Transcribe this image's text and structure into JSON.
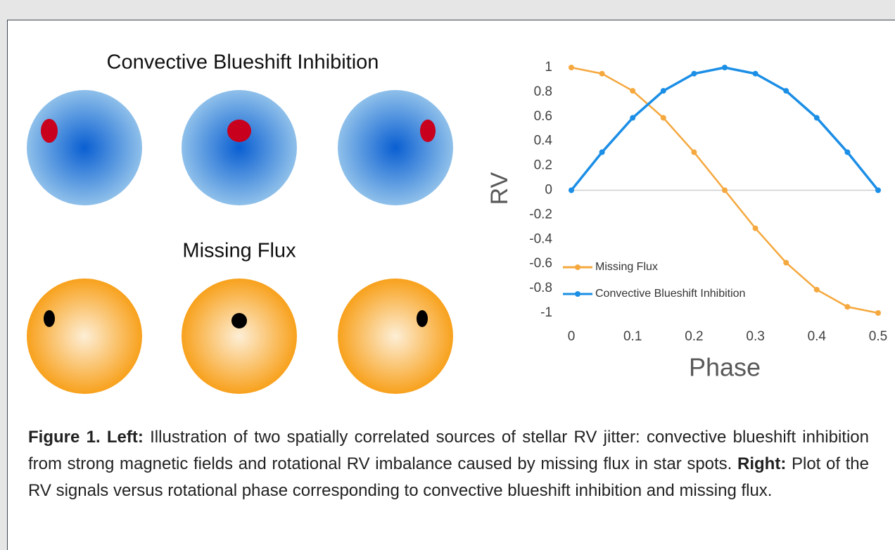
{
  "diagram": {
    "top_title": "Convective Blueshift Inhibition",
    "bottom_title": "Missing Flux"
  },
  "chart_data": {
    "type": "line",
    "xlabel": "Phase",
    "ylabel": "RV",
    "x": [
      0,
      0.05,
      0.1,
      0.15,
      0.2,
      0.25,
      0.3,
      0.35,
      0.4,
      0.45,
      0.5
    ],
    "series": [
      {
        "name": "Missing Flux",
        "color": "#f5a83e",
        "values": [
          1,
          0.95,
          0.81,
          0.59,
          0.31,
          0,
          -0.31,
          -0.59,
          -0.81,
          -0.95,
          -1
        ]
      },
      {
        "name": "Convective Blueshift Inhibition",
        "color": "#1b8ee6",
        "values": [
          0,
          0.31,
          0.59,
          0.81,
          0.95,
          1,
          0.95,
          0.81,
          0.59,
          0.31,
          0
        ]
      }
    ],
    "xlim": [
      0,
      0.5
    ],
    "xticks": [
      0,
      0.1,
      0.2,
      0.3,
      0.4,
      0.5
    ],
    "ylim": [
      -1,
      1
    ],
    "yticks": [
      1,
      0.8,
      0.6,
      0.4,
      0.2,
      0,
      -0.2,
      -0.4,
      -0.6,
      -0.8,
      -1
    ],
    "legend": "lower left"
  },
  "caption": {
    "label": "Figure 1.",
    "left_label": "Left:",
    "left_text": "Illustration of two spatially correlated sources of stellar RV jitter: convective blueshift inhibition from strong magnetic fields and rotational RV imbalance caused by missing flux in star spots.",
    "right_label": "Right:",
    "right_text": "Plot of the RV signals versus rotational phase corresponding to convective blueshift inhibition and missing flux."
  }
}
